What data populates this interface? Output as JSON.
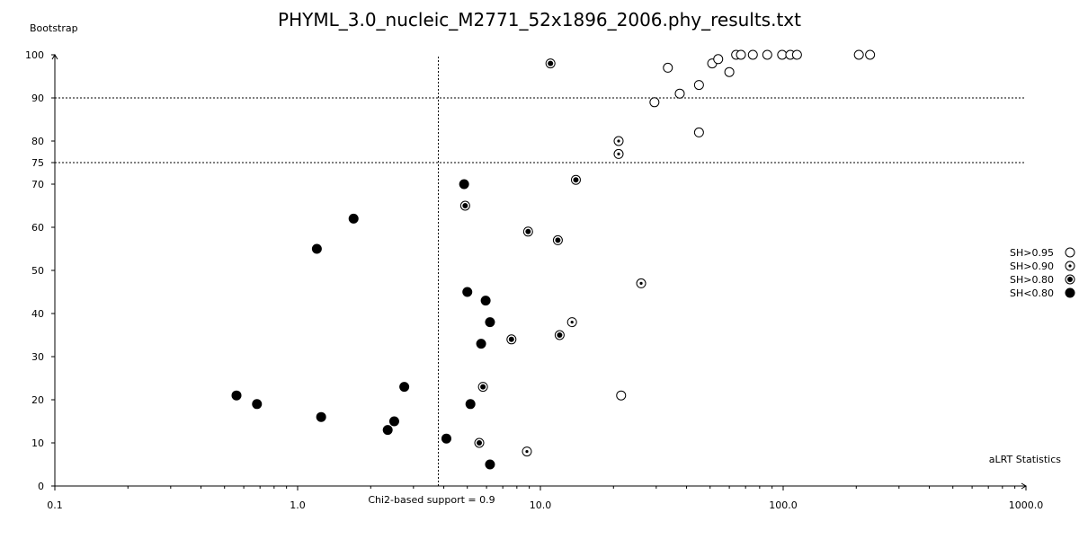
{
  "chart_data": {
    "type": "scatter",
    "title": "PHYML_3.0_nucleic_M2771_52x1896_2006.phy_results.txt",
    "ylabel": "Bootstrap",
    "xlabel": "aLRT Statistics",
    "x_scale": "log",
    "xlim": [
      0.1,
      1000.0
    ],
    "ylim": [
      0,
      100
    ],
    "x_ticks": [
      "0.1",
      "1.0",
      "10.0",
      "100.0",
      "1000.0"
    ],
    "y_ticks": [
      "0",
      "10",
      "20",
      "30",
      "40",
      "50",
      "60",
      "70",
      "75",
      "80",
      "90",
      "100"
    ],
    "reference_lines": {
      "vertical_x": 3.8,
      "vertical_label": "Chi2-based support = 0.9",
      "horizontal_y": [
        90,
        75
      ]
    },
    "legend": [
      {
        "label": "SH>0.95",
        "marker": "open"
      },
      {
        "label": "SH>0.90",
        "marker": "dot"
      },
      {
        "label": "SH>0.80",
        "marker": "bullseye"
      },
      {
        "label": "SH<0.80",
        "marker": "filled"
      }
    ],
    "series": [
      {
        "name": "SH>0.95",
        "marker": "open",
        "points": [
          {
            "x": 33.5,
            "y": 97
          },
          {
            "x": 51,
            "y": 98
          },
          {
            "x": 54,
            "y": 99
          },
          {
            "x": 64,
            "y": 100
          },
          {
            "x": 67,
            "y": 100
          },
          {
            "x": 75,
            "y": 100
          },
          {
            "x": 86,
            "y": 100
          },
          {
            "x": 99,
            "y": 100
          },
          {
            "x": 107,
            "y": 100
          },
          {
            "x": 114,
            "y": 100
          },
          {
            "x": 205,
            "y": 100
          },
          {
            "x": 228,
            "y": 100
          },
          {
            "x": 60,
            "y": 96
          },
          {
            "x": 45,
            "y": 93
          },
          {
            "x": 37.5,
            "y": 91
          },
          {
            "x": 29.5,
            "y": 89
          },
          {
            "x": 45,
            "y": 82
          },
          {
            "x": 21.5,
            "y": 21
          }
        ]
      },
      {
        "name": "SH>0.90",
        "marker": "dot",
        "points": [
          {
            "x": 21,
            "y": 80
          },
          {
            "x": 21,
            "y": 77
          },
          {
            "x": 26,
            "y": 47
          },
          {
            "x": 13.5,
            "y": 38
          },
          {
            "x": 8.8,
            "y": 8
          }
        ]
      },
      {
        "name": "SH>0.80",
        "marker": "bullseye",
        "points": [
          {
            "x": 11,
            "y": 98
          },
          {
            "x": 14,
            "y": 71
          },
          {
            "x": 4.9,
            "y": 65
          },
          {
            "x": 8.9,
            "y": 59
          },
          {
            "x": 11.8,
            "y": 57
          },
          {
            "x": 7.6,
            "y": 34
          },
          {
            "x": 12,
            "y": 35
          },
          {
            "x": 5.8,
            "y": 23
          },
          {
            "x": 5.6,
            "y": 10
          }
        ]
      },
      {
        "name": "SH<0.80",
        "marker": "filled",
        "points": [
          {
            "x": 4.85,
            "y": 70
          },
          {
            "x": 1.7,
            "y": 62
          },
          {
            "x": 1.2,
            "y": 55
          },
          {
            "x": 5.0,
            "y": 45
          },
          {
            "x": 5.95,
            "y": 43
          },
          {
            "x": 6.2,
            "y": 38
          },
          {
            "x": 5.7,
            "y": 33
          },
          {
            "x": 0.56,
            "y": 21
          },
          {
            "x": 0.68,
            "y": 19
          },
          {
            "x": 2.75,
            "y": 23
          },
          {
            "x": 5.15,
            "y": 19
          },
          {
            "x": 1.25,
            "y": 16
          },
          {
            "x": 2.5,
            "y": 15
          },
          {
            "x": 2.35,
            "y": 13
          },
          {
            "x": 4.1,
            "y": 11
          },
          {
            "x": 6.2,
            "y": 5
          }
        ]
      }
    ]
  }
}
